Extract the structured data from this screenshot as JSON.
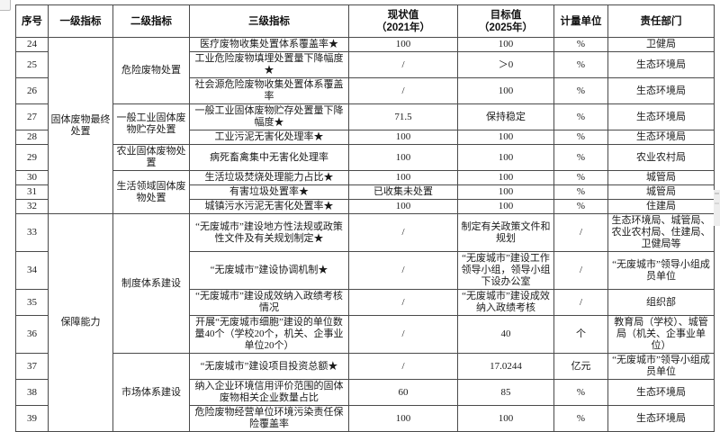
{
  "table": {
    "columns": [
      {
        "label": "序号"
      },
      {
        "label": "一级指标"
      },
      {
        "label": "二级指标"
      },
      {
        "label": "三级指标"
      },
      {
        "label": "现状值",
        "sub": "（2021年）"
      },
      {
        "label": "目标值",
        "sub": "（2025年）"
      },
      {
        "label": "计量单位"
      },
      {
        "label": "责任部门"
      }
    ],
    "rows": [
      {
        "cells": [
          {
            "t": "24"
          },
          {
            "t": "固体废物最终处置",
            "rs": 9
          },
          {
            "t": "危险废物处置",
            "rs": 3
          },
          {
            "t": "医疗废物收集处置体系覆盖率★"
          },
          {
            "t": "100"
          },
          {
            "t": "100"
          },
          {
            "t": "%"
          },
          {
            "t": "卫健局"
          }
        ]
      },
      {
        "cells": [
          {
            "t": "25"
          },
          {
            "t": "工业危险废物填埋处置量下降幅度★"
          },
          {
            "t": "/"
          },
          {
            "t": "＞0"
          },
          {
            "t": "%"
          },
          {
            "t": "生态环境局"
          }
        ]
      },
      {
        "cells": [
          {
            "t": "26"
          },
          {
            "t": "社会源危险废物收集处置体系覆盖率"
          },
          {
            "t": "/"
          },
          {
            "t": "100"
          },
          {
            "t": "%"
          },
          {
            "t": "生态环境局"
          }
        ]
      },
      {
        "cells": [
          {
            "t": "27"
          },
          {
            "t": "一般工业固体废物贮存处置",
            "rs": 2
          },
          {
            "t": "一般工业固体废物贮存处置量下降幅度★"
          },
          {
            "t": "71.5"
          },
          {
            "t": "保持稳定"
          },
          {
            "t": "%"
          },
          {
            "t": "生态环境局"
          }
        ]
      },
      {
        "cells": [
          {
            "t": "28"
          },
          {
            "t": "工业污泥无害化处理率★"
          },
          {
            "t": "100"
          },
          {
            "t": "100"
          },
          {
            "t": "%"
          },
          {
            "t": "生态环境局"
          }
        ]
      },
      {
        "cells": [
          {
            "t": "29"
          },
          {
            "t": "农业固体废物处置"
          },
          {
            "t": "病死畜禽集中无害化处理率"
          },
          {
            "t": "100"
          },
          {
            "t": "100"
          },
          {
            "t": "%"
          },
          {
            "t": "农业农村局"
          }
        ]
      },
      {
        "cells": [
          {
            "t": "30"
          },
          {
            "t": "生活领域固体废物处置",
            "rs": 3
          },
          {
            "t": "生活垃圾焚烧处理能力占比★"
          },
          {
            "t": "100"
          },
          {
            "t": "100"
          },
          {
            "t": "%"
          },
          {
            "t": "城管局"
          }
        ]
      },
      {
        "cells": [
          {
            "t": "31"
          },
          {
            "t": "有害垃圾处置率★"
          },
          {
            "t": "已收集未处置"
          },
          {
            "t": "100"
          },
          {
            "t": "%"
          },
          {
            "t": "城管局"
          }
        ]
      },
      {
        "cells": [
          {
            "t": "32"
          },
          {
            "t": "城镇污水污泥无害化处置率★"
          },
          {
            "t": "100"
          },
          {
            "t": "100"
          },
          {
            "t": "%"
          },
          {
            "t": "住建局"
          }
        ]
      },
      {
        "cells": [
          {
            "t": "33"
          },
          {
            "t": "保障能力",
            "rs": 7
          },
          {
            "t": "制度体系建设",
            "rs": 4
          },
          {
            "t": "“无废城市”建设地方性法规或政策性文件及有关规划制定★"
          },
          {
            "t": "/"
          },
          {
            "t": "制定有关政策文件和规划"
          },
          {
            "t": "/"
          },
          {
            "t": "生态环境局、城管局、农业农村局、住建局、卫健局等"
          }
        ]
      },
      {
        "cells": [
          {
            "t": "34"
          },
          {
            "t": "“无废城市”建设协调机制★"
          },
          {
            "t": "/"
          },
          {
            "t": "“无废城市”建设工作领导小组，领导小组下设办公室"
          },
          {
            "t": "/"
          },
          {
            "t": "“无废城市”领导小组成员单位"
          }
        ]
      },
      {
        "cells": [
          {
            "t": "35"
          },
          {
            "t": "“无废城市”建设成效纳入政绩考核情况"
          },
          {
            "t": "/"
          },
          {
            "t": "“无废城市”建设成效纳入政绩考核"
          },
          {
            "t": "/"
          },
          {
            "t": "组织部"
          }
        ]
      },
      {
        "cells": [
          {
            "t": "36"
          },
          {
            "t": "开展“无废城市细胞”建设的单位数量40个（学校20个，机关、企事业单位20个）"
          },
          {
            "t": "/"
          },
          {
            "t": "40"
          },
          {
            "t": "个"
          },
          {
            "t": "教育局（学校）、城管局（机关、企事业单位）"
          }
        ]
      },
      {
        "cells": [
          {
            "t": "37"
          },
          {
            "t": "市场体系建设",
            "rs": 3
          },
          {
            "t": "“无废城市”建设项目投资总额★"
          },
          {
            "t": "/"
          },
          {
            "t": "17.0244"
          },
          {
            "t": "亿元"
          },
          {
            "t": "“无废城市”领导小组成员单位"
          }
        ]
      },
      {
        "cells": [
          {
            "t": "38"
          },
          {
            "t": "纳入企业环境信用评价范围的固体废物相关企业数量占比"
          },
          {
            "t": "60"
          },
          {
            "t": "85"
          },
          {
            "t": "%"
          },
          {
            "t": "生态环境局"
          }
        ]
      },
      {
        "cells": [
          {
            "t": "39"
          },
          {
            "t": "危险废物经营单位环境污染责任保险覆盖率"
          },
          {
            "t": "100"
          },
          {
            "t": "100"
          },
          {
            "t": "%"
          },
          {
            "t": "生态环境局"
          }
        ]
      }
    ]
  },
  "colors": {
    "border": "#4a4a4a",
    "text": "#1b1b1b",
    "background": "#ffffff"
  }
}
